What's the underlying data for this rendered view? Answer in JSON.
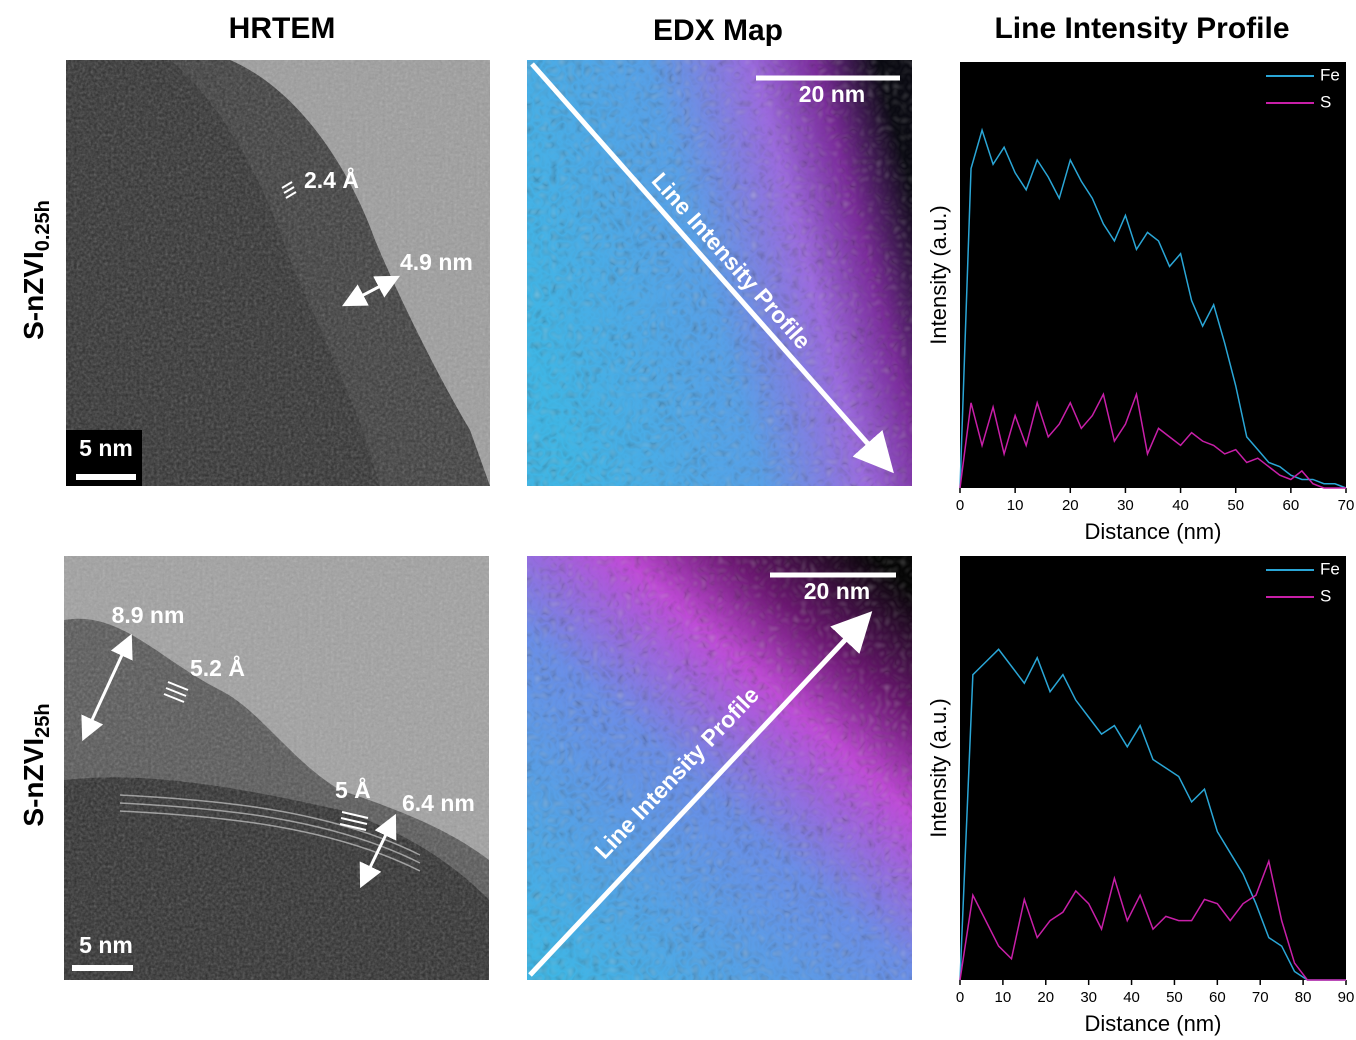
{
  "figure": {
    "column_titles": [
      "HRTEM",
      "EDX Map",
      "Line Intensity Profile"
    ],
    "rows": [
      {
        "label": {
          "text": "S-nZVI",
          "subscript": "0.25h"
        },
        "hrtem": {
          "scale_bar": "5 nm",
          "annotations": [
            "2.4 Å",
            "4.9 nm"
          ]
        },
        "edx": {
          "scale_bar": "20 nm",
          "line_label": "Line Intensity Profile"
        }
      },
      {
        "label": {
          "text": "S-nZVI",
          "subscript": "25h"
        },
        "hrtem": {
          "scale_bar": "5 nm",
          "annotations": [
            "8.9 nm",
            "5.2 Å",
            "5 Å",
            "6.4 nm"
          ]
        },
        "edx": {
          "scale_bar": "20 nm",
          "line_label": "Line Intensity Profile"
        }
      }
    ]
  },
  "chart_data": [
    {
      "type": "line",
      "xlabel": "Distance (nm)",
      "ylabel": "Intensity (a.u.)",
      "legend": "upper right",
      "background": "#000000",
      "x": [
        0,
        2,
        4,
        6,
        8,
        10,
        12,
        14,
        16,
        18,
        20,
        22,
        24,
        26,
        28,
        30,
        32,
        34,
        36,
        38,
        40,
        42,
        44,
        46,
        48,
        50,
        52,
        54,
        56,
        58,
        60,
        62,
        64,
        66,
        68,
        70
      ],
      "series": [
        {
          "name": "Fe",
          "color": "#2aa6d6",
          "values": [
            0,
            75,
            84,
            76,
            80,
            74,
            70,
            77,
            73,
            68,
            77,
            72,
            68,
            62,
            58,
            64,
            56,
            60,
            58,
            52,
            55,
            44,
            38,
            43,
            34,
            24,
            12,
            9,
            6,
            5,
            3,
            2,
            2,
            1,
            1,
            0
          ]
        },
        {
          "name": "S",
          "color": "#c81fa8",
          "values": [
            0,
            20,
            10,
            19,
            8,
            17,
            10,
            20,
            12,
            15,
            20,
            14,
            17,
            22,
            11,
            15,
            22,
            8,
            14,
            12,
            10,
            13,
            11,
            10,
            8,
            9,
            6,
            7,
            5,
            3,
            2,
            4,
            1,
            0,
            0,
            0
          ]
        }
      ],
      "xlim": [
        0,
        70
      ],
      "xticks": [
        0,
        10,
        20,
        30,
        40,
        50,
        60,
        70
      ],
      "ylim": [
        0,
        100
      ]
    },
    {
      "type": "line",
      "xlabel": "Distance (nm)",
      "ylabel": "Intensity (a.u.)",
      "legend": "upper right",
      "background": "#000000",
      "x": [
        0,
        3,
        6,
        9,
        12,
        15,
        18,
        21,
        24,
        27,
        30,
        33,
        36,
        39,
        42,
        45,
        48,
        51,
        54,
        57,
        60,
        63,
        66,
        69,
        72,
        75,
        78,
        81,
        84,
        87,
        90
      ],
      "series": [
        {
          "name": "Fe",
          "color": "#2aa6d6",
          "values": [
            0,
            72,
            75,
            78,
            74,
            70,
            76,
            68,
            72,
            66,
            62,
            58,
            60,
            55,
            60,
            52,
            50,
            48,
            42,
            45,
            35,
            30,
            25,
            18,
            10,
            8,
            2,
            0,
            0,
            0,
            0
          ]
        },
        {
          "name": "S",
          "color": "#c81fa8",
          "values": [
            0,
            20,
            14,
            8,
            5,
            19,
            10,
            14,
            16,
            21,
            18,
            12,
            24,
            14,
            20,
            12,
            15,
            14,
            14,
            19,
            18,
            14,
            18,
            20,
            28,
            14,
            4,
            0,
            0,
            0,
            0
          ]
        }
      ],
      "xlim": [
        0,
        90
      ],
      "xticks": [
        0,
        10,
        20,
        30,
        40,
        50,
        60,
        70,
        80,
        90
      ],
      "ylim": [
        0,
        100
      ]
    }
  ]
}
